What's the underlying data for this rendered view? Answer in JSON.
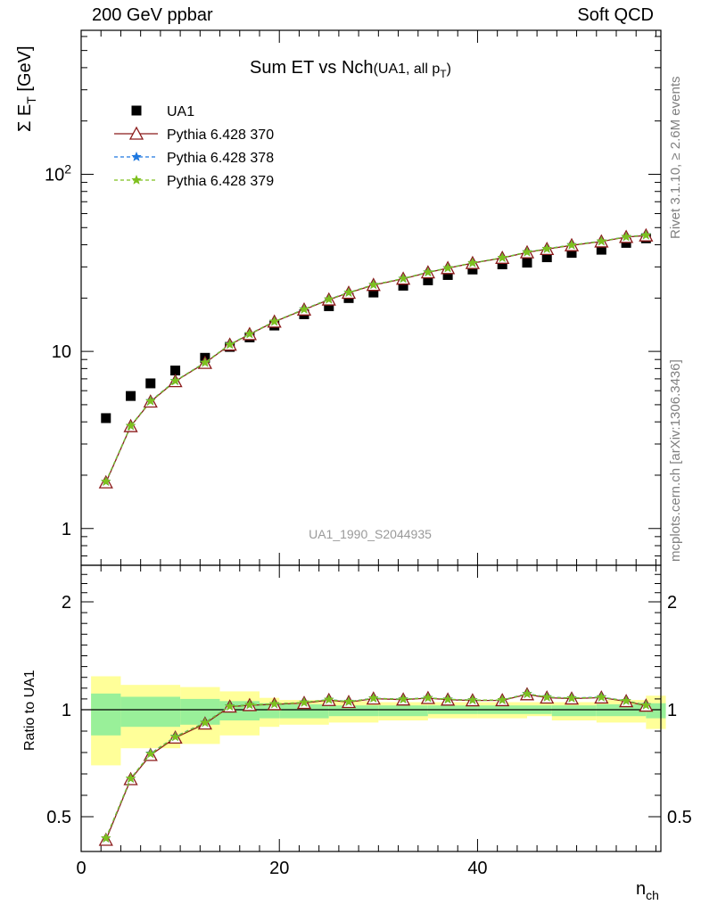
{
  "header": {
    "left": "200 GeV ppbar",
    "right": "Soft QCD"
  },
  "side_labels": {
    "top": "Rivet 3.1.10, ≥ 2.6M events",
    "bottom": "mcplots.cern.ch [arXiv:1306.3436]"
  },
  "chart_data": {
    "type": "scatter",
    "title": "Sum ET vs Nch",
    "title_suffix": "(UA1, all p",
    "title_suffix_sub": "T",
    "title_suffix_end": ")",
    "watermark": "UA1_1990_S2044935",
    "ylabel": "Σ E",
    "ylabel_sub": "T",
    "ylabel_unit": "[GeV]",
    "xlabel": "n",
    "xlabel_sub": "ch",
    "ratio_ylabel": "Ratio to UA1",
    "yscale": "log",
    "ylim": [
      0.62,
      650
    ],
    "xlim": [
      0,
      58.5
    ],
    "ratio_ylim": [
      0.4,
      2.4
    ],
    "x_ticks": [
      "0",
      "20",
      "40"
    ],
    "y_ticks": [
      "1",
      "10",
      "10²"
    ],
    "ratio_y_ticks": [
      "0.5",
      "1",
      "2"
    ],
    "legend_position": "top-left",
    "x": [
      2.5,
      5,
      7,
      9.5,
      12.5,
      15,
      17,
      19.5,
      22.5,
      25,
      27,
      29.5,
      32.5,
      35,
      37,
      39.5,
      42.5,
      45,
      47,
      49.5,
      52.5,
      55,
      57
    ],
    "data": {
      "name": "UA1",
      "color": "#000000",
      "values": [
        4.2,
        5.6,
        6.6,
        7.8,
        9.2,
        10.6,
        12.0,
        14.0,
        16.2,
        18.0,
        20.0,
        21.5,
        23.5,
        25.2,
        27.0,
        29.0,
        31.0,
        31.7,
        34.0,
        36.0,
        37.5,
        41.0,
        43.5
      ],
      "err_lo": [
        0.2,
        0.25,
        0.3,
        0.35,
        0.4,
        0.5,
        0.6,
        0.7,
        0.8,
        0.9,
        1.0,
        1.1,
        1.2,
        1.3,
        1.4,
        1.5,
        1.6,
        1.7,
        1.8,
        1.9,
        2.0,
        2.1,
        2.2
      ],
      "err_hi": [
        0.2,
        0.25,
        0.3,
        0.35,
        0.4,
        0.5,
        0.6,
        0.7,
        0.8,
        0.9,
        1.0,
        1.1,
        1.2,
        1.3,
        1.4,
        1.5,
        1.6,
        1.7,
        1.8,
        1.9,
        2.0,
        2.1,
        2.2
      ]
    },
    "bands": {
      "edges": [
        1,
        4,
        10,
        14,
        18,
        20,
        25,
        30,
        35,
        40,
        45,
        47.5,
        52,
        57,
        59
      ],
      "yellow_lo": [
        0.74,
        0.82,
        0.84,
        0.88,
        0.92,
        0.93,
        0.94,
        0.95,
        0.96,
        0.96,
        0.97,
        0.95,
        0.94,
        0.91
      ],
      "yellow_hi": [
        1.31,
        1.23,
        1.21,
        1.17,
        1.11,
        1.09,
        1.08,
        1.07,
        1.07,
        1.07,
        1.07,
        1.07,
        1.09,
        1.13
      ],
      "green_lo": [
        0.88,
        0.92,
        0.93,
        0.95,
        0.96,
        0.96,
        0.97,
        0.97,
        0.98,
        0.98,
        0.98,
        0.97,
        0.97,
        0.96
      ],
      "green_hi": [
        1.15,
        1.12,
        1.1,
        1.08,
        1.06,
        1.05,
        1.04,
        1.04,
        1.04,
        1.04,
        1.04,
        1.04,
        1.05,
        1.06
      ]
    },
    "series": [
      {
        "name": "Pythia 6.428 370",
        "color": "#8b1a1a",
        "marker": "triangle",
        "line": "solid",
        "values": [
          1.82,
          3.78,
          5.2,
          6.78,
          8.6,
          10.9,
          12.5,
          14.7,
          17.2,
          19.6,
          21.4,
          23.7,
          25.7,
          27.9,
          29.5,
          31.5,
          33.7,
          36.2,
          37.8,
          39.7,
          41.7,
          44.2,
          45.1
        ]
      },
      {
        "name": "Pythia 6.428 378",
        "color": "#1e78e0",
        "marker": "star",
        "line": "dashed",
        "values": [
          1.84,
          3.8,
          5.25,
          6.82,
          8.65,
          10.95,
          12.55,
          14.75,
          17.3,
          19.7,
          21.5,
          23.8,
          25.8,
          28.0,
          29.6,
          31.6,
          33.8,
          36.4,
          38.0,
          39.9,
          41.9,
          44.4,
          45.4
        ]
      },
      {
        "name": "Pythia 6.428 379",
        "color": "#7ec01e",
        "marker": "star",
        "line": "dashed",
        "values": [
          1.84,
          3.8,
          5.24,
          6.81,
          8.64,
          10.93,
          12.54,
          14.74,
          17.28,
          19.68,
          21.48,
          23.78,
          25.78,
          27.98,
          29.58,
          31.58,
          33.78,
          36.35,
          37.95,
          39.85,
          41.85,
          44.35,
          45.3
        ]
      }
    ]
  }
}
